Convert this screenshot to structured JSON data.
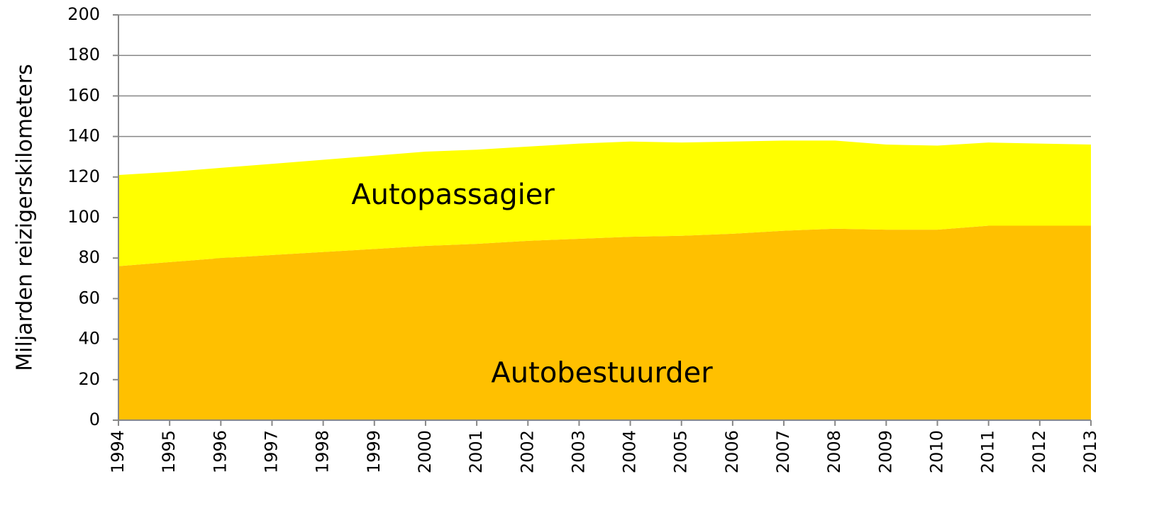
{
  "chart_data": {
    "type": "stacked-area",
    "y_label": "Miljarden reizigerskilometers",
    "categories": [
      "1994",
      "1995",
      "1996",
      "1997",
      "1998",
      "1999",
      "2000",
      "2001",
      "2002",
      "2003",
      "2004",
      "2005",
      "2006",
      "2007",
      "2008",
      "2009",
      "2010",
      "2011",
      "2012",
      "2013"
    ],
    "series": [
      {
        "name": "Autobestuurder",
        "color": "#FFC000",
        "values": [
          76,
          78,
          80,
          81.5,
          83,
          84.5,
          86,
          87,
          88.5,
          89.5,
          90.5,
          91,
          92,
          93.5,
          94.5,
          94,
          94,
          96,
          96,
          96
        ]
      },
      {
        "name": "Autopassagier",
        "color": "#FFFF00",
        "values": [
          45,
          44.5,
          44.5,
          45,
          45.5,
          46,
          46.5,
          46.5,
          46.5,
          47,
          47,
          46,
          45.5,
          44.5,
          43.5,
          42,
          41.5,
          41,
          40.5,
          40
        ]
      }
    ],
    "ylim": [
      0,
      200
    ],
    "yticks": [
      0,
      20,
      40,
      60,
      80,
      100,
      120,
      140,
      160,
      180,
      200
    ],
    "grid": true
  }
}
